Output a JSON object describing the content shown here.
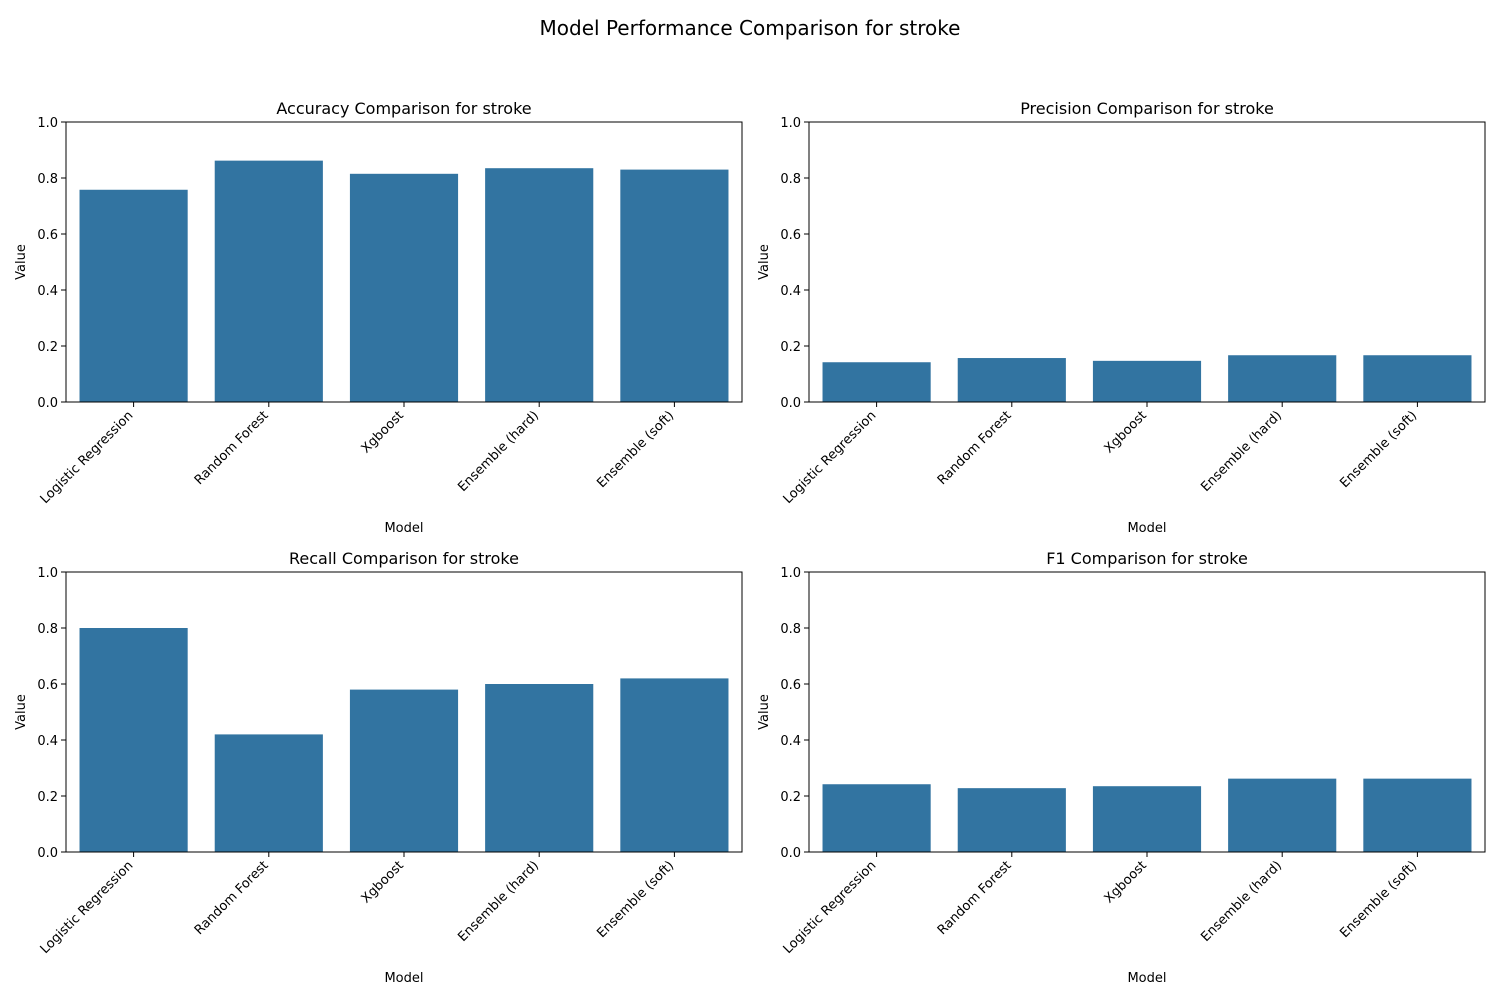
{
  "suptitle": "Model Performance Comparison for stroke",
  "colors": {
    "bar": "#3274a1"
  },
  "chart_data": [
    {
      "type": "bar",
      "title": "Accuracy Comparison for stroke",
      "xlabel": "Model",
      "ylabel": "Value",
      "ylim": [
        0,
        1
      ],
      "yticks": [
        "0.0",
        "0.2",
        "0.4",
        "0.6",
        "0.8",
        "1.0"
      ],
      "categories": [
        "Logistic Regression",
        "Random Forest",
        "Xgboost",
        "Ensemble (hard)",
        "Ensemble (soft)"
      ],
      "values": [
        0.758,
        0.862,
        0.815,
        0.835,
        0.83
      ]
    },
    {
      "type": "bar",
      "title": "Precision Comparison for stroke",
      "xlabel": "Model",
      "ylabel": "Value",
      "ylim": [
        0,
        1
      ],
      "yticks": [
        "0.0",
        "0.2",
        "0.4",
        "0.6",
        "0.8",
        "1.0"
      ],
      "categories": [
        "Logistic Regression",
        "Random Forest",
        "Xgboost",
        "Ensemble (hard)",
        "Ensemble (soft)"
      ],
      "values": [
        0.142,
        0.157,
        0.147,
        0.167,
        0.167
      ]
    },
    {
      "type": "bar",
      "title": "Recall Comparison for stroke",
      "xlabel": "Model",
      "ylabel": "Value",
      "ylim": [
        0,
        1
      ],
      "yticks": [
        "0.0",
        "0.2",
        "0.4",
        "0.6",
        "0.8",
        "1.0"
      ],
      "categories": [
        "Logistic Regression",
        "Random Forest",
        "Xgboost",
        "Ensemble (hard)",
        "Ensemble (soft)"
      ],
      "values": [
        0.8,
        0.42,
        0.58,
        0.6,
        0.62
      ]
    },
    {
      "type": "bar",
      "title": "F1 Comparison for stroke",
      "xlabel": "Model",
      "ylabel": "Value",
      "ylim": [
        0,
        1
      ],
      "yticks": [
        "0.0",
        "0.2",
        "0.4",
        "0.6",
        "0.8",
        "1.0"
      ],
      "categories": [
        "Logistic Regression",
        "Random Forest",
        "Xgboost",
        "Ensemble (hard)",
        "Ensemble (soft)"
      ],
      "values": [
        0.242,
        0.228,
        0.235,
        0.262,
        0.262
      ]
    }
  ]
}
